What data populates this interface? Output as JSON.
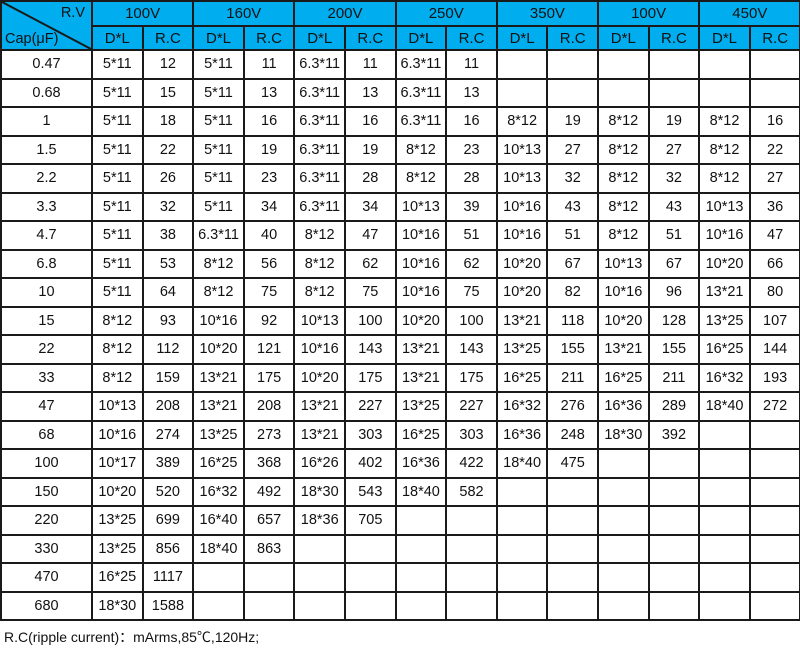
{
  "header": {
    "corner_top": "R.V",
    "corner_bottom": "Cap(μF)",
    "voltages": [
      "100V",
      "160V",
      "200V",
      "250V",
      "350V",
      "100V",
      "450V"
    ],
    "sub_dl": "D*L",
    "sub_rc": "R.C"
  },
  "colors": {
    "header_bg": "#00aeef",
    "border": "#1a1a1a"
  },
  "rows": [
    [
      "0.47",
      "5*11",
      "12",
      "5*11",
      "11",
      "6.3*11",
      "11",
      "6.3*11",
      "11",
      "",
      "",
      "",
      "",
      "",
      ""
    ],
    [
      "0.68",
      "5*11",
      "15",
      "5*11",
      "13",
      "6.3*11",
      "13",
      "6.3*11",
      "13",
      "",
      "",
      "",
      "",
      "",
      ""
    ],
    [
      "1",
      "5*11",
      "18",
      "5*11",
      "16",
      "6.3*11",
      "16",
      "6.3*11",
      "16",
      "8*12",
      "19",
      "8*12",
      "19",
      "8*12",
      "16"
    ],
    [
      "1.5",
      "5*11",
      "22",
      "5*11",
      "19",
      "6.3*11",
      "19",
      "8*12",
      "23",
      "10*13",
      "27",
      "8*12",
      "27",
      "8*12",
      "22"
    ],
    [
      "2.2",
      "5*11",
      "26",
      "5*11",
      "23",
      "6.3*11",
      "28",
      "8*12",
      "28",
      "10*13",
      "32",
      "8*12",
      "32",
      "8*12",
      "27"
    ],
    [
      "3.3",
      "5*11",
      "32",
      "5*11",
      "34",
      "6.3*11",
      "34",
      "10*13",
      "39",
      "10*16",
      "43",
      "8*12",
      "43",
      "10*13",
      "36"
    ],
    [
      "4.7",
      "5*11",
      "38",
      "6.3*11",
      "40",
      "8*12",
      "47",
      "10*16",
      "51",
      "10*16",
      "51",
      "8*12",
      "51",
      "10*16",
      "47"
    ],
    [
      "6.8",
      "5*11",
      "53",
      "8*12",
      "56",
      "8*12",
      "62",
      "10*16",
      "62",
      "10*20",
      "67",
      "10*13",
      "67",
      "10*20",
      "66"
    ],
    [
      "10",
      "5*11",
      "64",
      "8*12",
      "75",
      "8*12",
      "75",
      "10*16",
      "75",
      "10*20",
      "82",
      "10*16",
      "96",
      "13*21",
      "80"
    ],
    [
      "15",
      "8*12",
      "93",
      "10*16",
      "92",
      "10*13",
      "100",
      "10*20",
      "100",
      "13*21",
      "118",
      "10*20",
      "128",
      "13*25",
      "107"
    ],
    [
      "22",
      "8*12",
      "112",
      "10*20",
      "121",
      "10*16",
      "143",
      "13*21",
      "143",
      "13*25",
      "155",
      "13*21",
      "155",
      "16*25",
      "144"
    ],
    [
      "33",
      "8*12",
      "159",
      "13*21",
      "175",
      "10*20",
      "175",
      "13*21",
      "175",
      "16*25",
      "211",
      "16*25",
      "211",
      "16*32",
      "193"
    ],
    [
      "47",
      "10*13",
      "208",
      "13*21",
      "208",
      "13*21",
      "227",
      "13*25",
      "227",
      "16*32",
      "276",
      "16*36",
      "289",
      "18*40",
      "272"
    ],
    [
      "68",
      "10*16",
      "274",
      "13*25",
      "273",
      "13*21",
      "303",
      "16*25",
      "303",
      "16*36",
      "248",
      "18*30",
      "392",
      "",
      ""
    ],
    [
      "100",
      "10*17",
      "389",
      "16*25",
      "368",
      "16*26",
      "402",
      "16*36",
      "422",
      "18*40",
      "475",
      "",
      "",
      "",
      ""
    ],
    [
      "150",
      "10*20",
      "520",
      "16*32",
      "492",
      "18*30",
      "543",
      "18*40",
      "582",
      "",
      "",
      "",
      "",
      "",
      ""
    ],
    [
      "220",
      "13*25",
      "699",
      "16*40",
      "657",
      "18*36",
      "705",
      "",
      "",
      "",
      "",
      "",
      "",
      "",
      ""
    ],
    [
      "330",
      "13*25",
      "856",
      "18*40",
      "863",
      "",
      "",
      "",
      "",
      "",
      "",
      "",
      "",
      "",
      ""
    ],
    [
      "470",
      "16*25",
      "1117",
      "",
      "",
      "",
      "",
      "",
      "",
      "",
      "",
      "",
      "",
      "",
      ""
    ],
    [
      "680",
      "18*30",
      "1588",
      "",
      "",
      "",
      "",
      "",
      "",
      "",
      "",
      "",
      "",
      "",
      ""
    ]
  ],
  "footnote": "R.C(ripple current)：mArms,85℃,120Hz;"
}
